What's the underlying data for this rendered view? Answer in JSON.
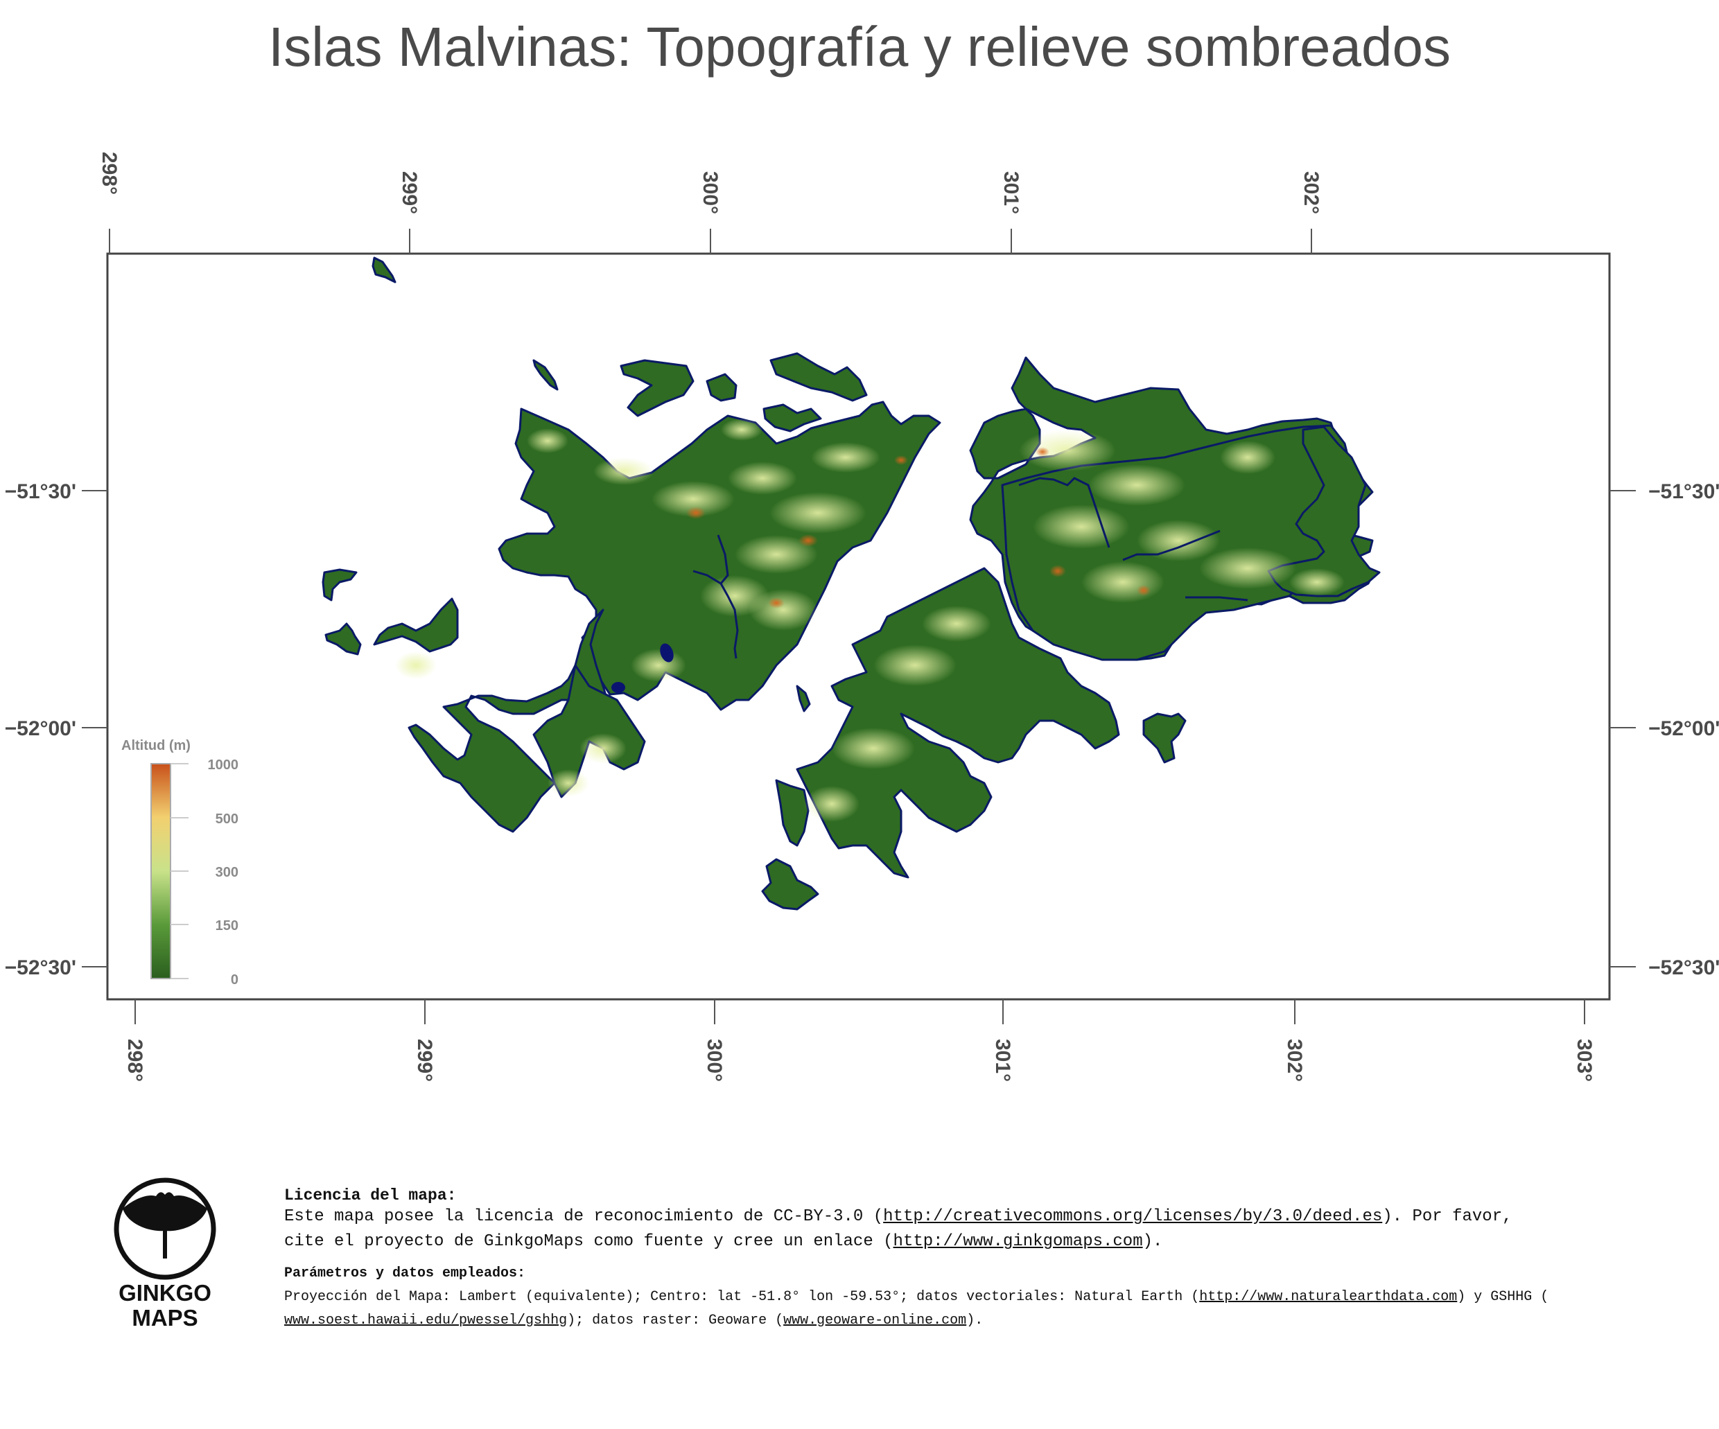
{
  "title": "Islas Malvinas: Topografía y relieve sombreados",
  "axes": {
    "top_lon_labels": [
      "298°",
      "299°",
      "300°",
      "301°",
      "302°"
    ],
    "bottom_lon_labels": [
      "298°",
      "299°",
      "300°",
      "301°",
      "302°",
      "303°"
    ],
    "lat_labels": [
      "−51°30'",
      "−52°00'",
      "−52°30'"
    ]
  },
  "legend": {
    "title": "Altitud (m)",
    "ticks": [
      "1000",
      "500",
      "300",
      "150",
      "0"
    ]
  },
  "colors": {
    "land_low": "#2f6b22",
    "land_mid": "#6fa64a",
    "land_high": "#e7f0a8",
    "peak": "#d96a1e",
    "coast": "#0a1a66",
    "water": "#0a1470",
    "frame": "#444444"
  },
  "license": {
    "heading": "Licencia del mapa:",
    "line1_pre": "Este mapa posee la licencia de reconocimiento de CC-BY-3.0 (",
    "line1_link": "http://creativecommons.org/licenses/by/3.0/deed.es",
    "line1_post": ").  Por favor,",
    "line2_pre": "cite el proyecto de GinkgoMaps como fuente y cree un enlace (",
    "line2_link": "http://www.ginkgomaps.com",
    "line2_post": ")."
  },
  "params": {
    "heading": "Parámetros y datos empleados:",
    "line1_pre": "Proyección del Mapa: Lambert (equivalente); Centro: lat -51.8° lon -59.53°; datos vectoriales: Natural Earth (",
    "line1_link": "http://www.naturalearthdata.com",
    "line1_post": ") y GSHHG (",
    "line2_link": "www.soest.hawaii.edu/pwessel/gshhg",
    "line2_mid": "); datos raster: Geoware (",
    "line2_link2": "www.geoware-online.com",
    "line2_post": ")."
  },
  "logo": {
    "line1": "GINKGO",
    "line2": "MAPS"
  }
}
